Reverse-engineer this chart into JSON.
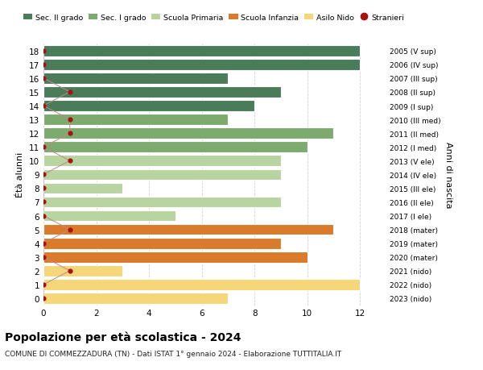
{
  "ages": [
    18,
    17,
    16,
    15,
    14,
    13,
    12,
    11,
    10,
    9,
    8,
    7,
    6,
    5,
    4,
    3,
    2,
    1,
    0
  ],
  "labels_right": [
    "2005 (V sup)",
    "2006 (IV sup)",
    "2007 (III sup)",
    "2008 (II sup)",
    "2009 (I sup)",
    "2010 (III med)",
    "2011 (II med)",
    "2012 (I med)",
    "2013 (V ele)",
    "2014 (IV ele)",
    "2015 (III ele)",
    "2016 (II ele)",
    "2017 (I ele)",
    "2018 (mater)",
    "2019 (mater)",
    "2020 (mater)",
    "2021 (nido)",
    "2022 (nido)",
    "2023 (nido)"
  ],
  "bar_values": [
    12,
    12,
    7,
    9,
    8,
    7,
    11,
    10,
    9,
    9,
    3,
    9,
    5,
    11,
    9,
    10,
    3,
    12,
    7
  ],
  "stranieri_values": [
    0,
    0,
    0,
    1,
    0,
    1,
    1,
    0,
    1,
    0,
    0,
    0,
    0,
    1,
    0,
    0,
    1,
    0,
    0
  ],
  "bar_colors": [
    "#4a7c59",
    "#4a7c59",
    "#4a7c59",
    "#4a7c59",
    "#4a7c59",
    "#7dab6e",
    "#7dab6e",
    "#7dab6e",
    "#b8d4a0",
    "#b8d4a0",
    "#b8d4a0",
    "#b8d4a0",
    "#b8d4a0",
    "#d97b2b",
    "#d97b2b",
    "#d97b2b",
    "#f5d77a",
    "#f5d77a",
    "#f5d77a"
  ],
  "legend_colors": [
    "#4a7c59",
    "#7dab6e",
    "#b8d4a0",
    "#d97b2b",
    "#f5d77a",
    "#aa1111"
  ],
  "legend_labels": [
    "Sec. II grado",
    "Sec. I grado",
    "Scuola Primaria",
    "Scuola Infanzia",
    "Asilo Nido",
    "Stranieri"
  ],
  "stranieri_color": "#aa1111",
  "stranieri_line_color": "#c08888",
  "title": "Popolazione per età scolastica - 2024",
  "subtitle": "COMUNE DI COMMEZZADURA (TN) - Dati ISTAT 1° gennaio 2024 - Elaborazione TUTTITALIA.IT",
  "ylabel_left": "Étà alunni",
  "ylabel_right": "Anni di nascita",
  "xlim": [
    0,
    13
  ],
  "ylim": [
    -0.5,
    18.5
  ],
  "bar_height": 0.8,
  "background_color": "#ffffff",
  "grid_color": "#cccccc"
}
